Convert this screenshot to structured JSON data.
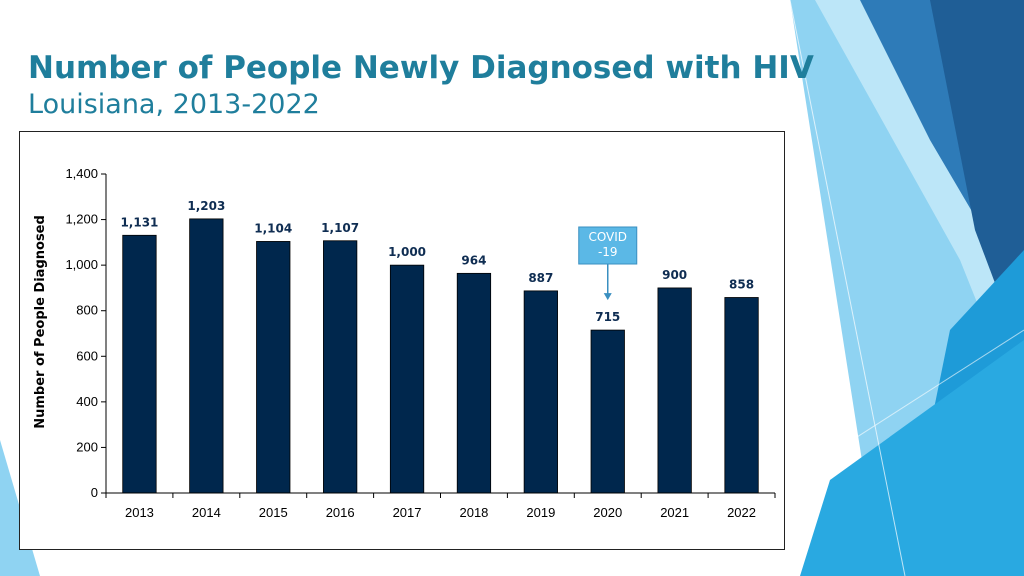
{
  "slide": {
    "title": "Number of People Newly Diagnosed with HIV",
    "subtitle": "Louisiana, 2013-2022"
  },
  "chart_data": {
    "type": "bar",
    "categories": [
      "2013",
      "2014",
      "2015",
      "2016",
      "2017",
      "2018",
      "2019",
      "2020",
      "2021",
      "2022"
    ],
    "values": [
      1131,
      1203,
      1104,
      1107,
      1000,
      964,
      887,
      715,
      900,
      858
    ],
    "data_labels": [
      "1,131",
      "1,203",
      "1,104",
      "1,107",
      "1,000",
      "964",
      "887",
      "715",
      "900",
      "858"
    ],
    "title": "",
    "xlabel": "",
    "ylabel": "Number of People Diagnosed",
    "ylim": [
      0,
      1400
    ],
    "yticks": [
      0,
      200,
      400,
      600,
      800,
      1000,
      1200,
      1400
    ],
    "ytick_labels": [
      "0",
      "200",
      "400",
      "600",
      "800",
      "1,000",
      "1,200",
      "1,400"
    ],
    "grid": false,
    "legend": "none",
    "bar_color": "#00274D",
    "annotation": {
      "text_lines": [
        "COVID",
        "-19"
      ],
      "category": "2020",
      "box_color": "#5BB8E6"
    }
  }
}
